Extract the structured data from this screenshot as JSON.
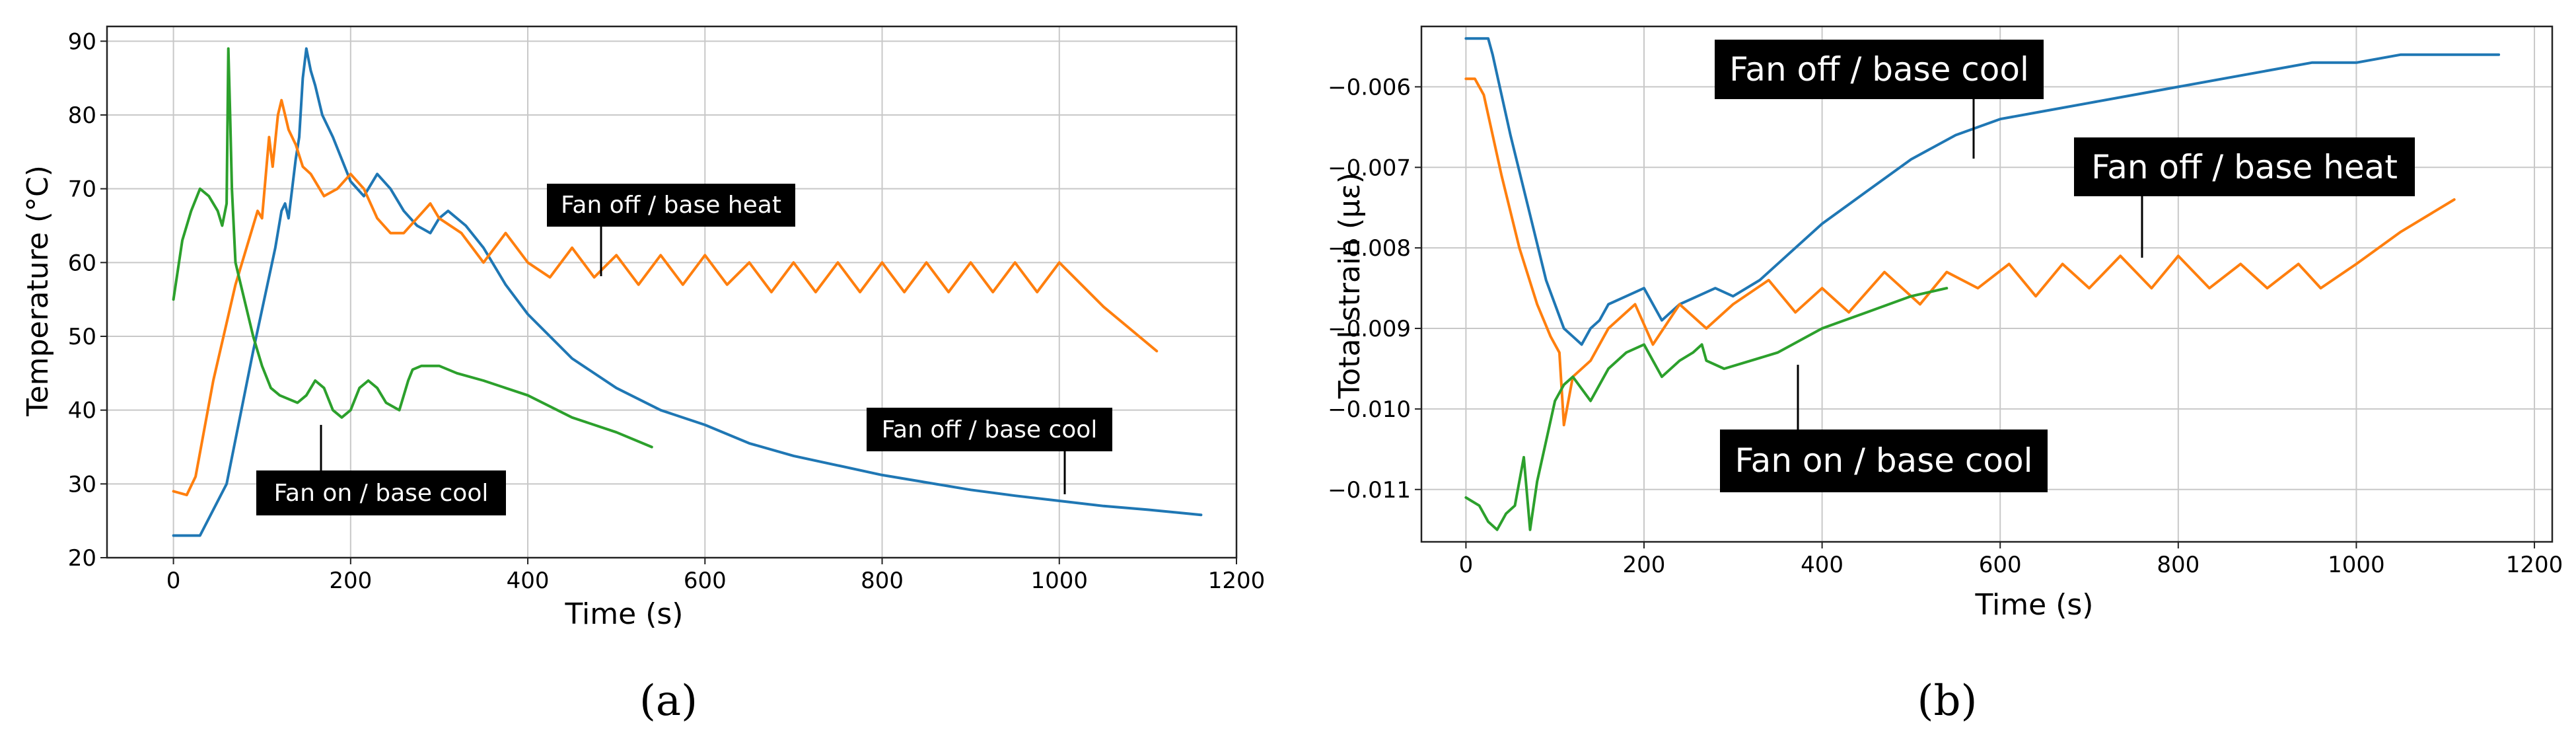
{
  "chart_data": [
    {
      "type": "line",
      "panel_label": "(a)",
      "xlabel": "Time (s)",
      "ylabel": "Temperature (°C)",
      "xlim": [
        -75,
        1200
      ],
      "ylim": [
        20,
        92
      ],
      "xticks": [
        0,
        200,
        400,
        600,
        800,
        1000,
        1200
      ],
      "yticks": [
        20,
        30,
        40,
        50,
        60,
        70,
        80,
        90
      ],
      "grid": true,
      "series": [
        {
          "color": "#1f77b4",
          "x": [
            0,
            20,
            30,
            60,
            90,
            115,
            122,
            126,
            130,
            134,
            138,
            142,
            146,
            150,
            155,
            160,
            168,
            180,
            200,
            215,
            230,
            245,
            260,
            275,
            290,
            300,
            310,
            330,
            350,
            375,
            400,
            450,
            500,
            550,
            600,
            650,
            700,
            750,
            800,
            850,
            900,
            950,
            1000,
            1050,
            1100,
            1160
          ],
          "y": [
            23,
            23,
            23,
            30,
            48,
            62,
            67,
            68,
            66,
            70,
            74,
            77,
            85,
            89,
            86,
            84,
            80,
            77,
            71,
            69,
            72,
            70,
            67,
            65,
            64,
            66,
            67,
            65,
            62,
            57,
            53,
            47,
            43,
            40,
            38,
            35.5,
            33.8,
            32.5,
            31.2,
            30.2,
            29.2,
            28.4,
            27.7,
            27,
            26.5,
            25.8
          ]
        },
        {
          "color": "#ff7f0e",
          "x": [
            0,
            15,
            25,
            45,
            70,
            95,
            100,
            108,
            112,
            118,
            122,
            126,
            130,
            138,
            146,
            155,
            170,
            185,
            200,
            215,
            230,
            245,
            260,
            275,
            290,
            300,
            325,
            350,
            375,
            400,
            425,
            450,
            475,
            500,
            525,
            550,
            575,
            600,
            625,
            650,
            675,
            700,
            725,
            750,
            775,
            800,
            825,
            850,
            875,
            900,
            925,
            950,
            975,
            1000,
            1050,
            1110
          ],
          "y": [
            29,
            28.5,
            31,
            44,
            57,
            67,
            66,
            77,
            73,
            80,
            82,
            80,
            78,
            76,
            73,
            72,
            69,
            70,
            72,
            70,
            66,
            64,
            64,
            66,
            68,
            66,
            64,
            60,
            64,
            60,
            58,
            62,
            58,
            61,
            57,
            61,
            57,
            61,
            57,
            60,
            56,
            60,
            56,
            60,
            56,
            60,
            56,
            60,
            56,
            60,
            56,
            60,
            56,
            60,
            54,
            48
          ]
        },
        {
          "color": "#2ca02c",
          "x": [
            0,
            10,
            20,
            30,
            40,
            50,
            55,
            60,
            62,
            64,
            66,
            70,
            80,
            90,
            100,
            110,
            120,
            140,
            150,
            160,
            170,
            180,
            190,
            200,
            210,
            220,
            230,
            240,
            255,
            265,
            270,
            280,
            300,
            320,
            350,
            400,
            450,
            500,
            540
          ],
          "y": [
            55,
            63,
            67,
            70,
            69,
            67,
            65,
            68,
            89,
            80,
            70,
            60,
            55,
            50,
            46,
            43,
            42,
            41,
            42,
            44,
            43,
            40,
            39,
            40,
            43,
            44,
            43,
            41,
            40,
            44,
            45.5,
            46,
            46,
            45,
            44,
            42,
            39,
            37,
            35
          ]
        }
      ]
    },
    {
      "type": "line",
      "panel_label": "(b)",
      "xlabel": "Time (s)",
      "ylabel": "Total strain (με)",
      "xlim": [
        -50,
        1220
      ],
      "ylim": [
        -0.01165,
        -0.00525
      ],
      "xticks": [
        0,
        200,
        400,
        600,
        800,
        1000,
        1200
      ],
      "yticks": [
        -0.011,
        -0.01,
        -0.009,
        -0.008,
        -0.007,
        -0.006
      ],
      "ytick_labels": [
        "−0.011",
        "−0.010",
        "−0.009",
        "−0.008",
        "−0.007",
        "−0.006"
      ],
      "grid": true,
      "series": [
        {
          "color": "#1f77b4",
          "x": [
            0,
            25,
            30,
            50,
            70,
            90,
            110,
            120,
            130,
            140,
            150,
            160,
            180,
            200,
            220,
            240,
            260,
            280,
            300,
            330,
            360,
            400,
            450,
            500,
            550,
            600,
            650,
            700,
            750,
            800,
            850,
            900,
            950,
            1000,
            1050,
            1100,
            1160
          ],
          "y": [
            -0.0054,
            -0.0054,
            -0.0056,
            -0.0066,
            -0.0075,
            -0.0084,
            -0.009,
            -0.0091,
            -0.0092,
            -0.009,
            -0.0089,
            -0.0087,
            -0.0086,
            -0.0085,
            -0.0089,
            -0.0087,
            -0.0086,
            -0.0085,
            -0.0086,
            -0.0084,
            -0.0081,
            -0.0077,
            -0.0073,
            -0.0069,
            -0.0066,
            -0.0064,
            -0.0063,
            -0.0062,
            -0.0061,
            -0.006,
            -0.0059,
            -0.0058,
            -0.0057,
            -0.0057,
            -0.0056,
            -0.0056,
            -0.0056
          ]
        },
        {
          "color": "#ff7f0e",
          "x": [
            0,
            10,
            20,
            40,
            60,
            80,
            95,
            105,
            110,
            120,
            140,
            160,
            190,
            210,
            240,
            270,
            300,
            340,
            370,
            400,
            430,
            470,
            510,
            540,
            575,
            610,
            640,
            670,
            700,
            735,
            770,
            800,
            835,
            870,
            900,
            935,
            960,
            1000,
            1050,
            1110
          ],
          "y": [
            -0.0059,
            -0.0059,
            -0.0061,
            -0.0071,
            -0.008,
            -0.0087,
            -0.0091,
            -0.0093,
            -0.0102,
            -0.0096,
            -0.0094,
            -0.009,
            -0.0087,
            -0.0092,
            -0.0087,
            -0.009,
            -0.0087,
            -0.0084,
            -0.0088,
            -0.0085,
            -0.0088,
            -0.0083,
            -0.0087,
            -0.0083,
            -0.0085,
            -0.0082,
            -0.0086,
            -0.0082,
            -0.0085,
            -0.0081,
            -0.0085,
            -0.0081,
            -0.0085,
            -0.0082,
            -0.0085,
            -0.0082,
            -0.0085,
            -0.0082,
            -0.0078,
            -0.0074
          ]
        },
        {
          "color": "#2ca02c",
          "x": [
            0,
            15,
            25,
            35,
            45,
            55,
            65,
            72,
            80,
            90,
            100,
            110,
            120,
            140,
            160,
            180,
            200,
            220,
            240,
            255,
            265,
            270,
            290,
            320,
            350,
            400,
            450,
            500,
            540
          ],
          "y": [
            -0.0111,
            -0.0112,
            -0.0114,
            -0.0115,
            -0.0113,
            -0.0112,
            -0.0106,
            -0.0115,
            -0.0109,
            -0.0104,
            -0.0099,
            -0.0097,
            -0.0096,
            -0.0099,
            -0.0095,
            -0.0093,
            -0.0092,
            -0.0096,
            -0.0094,
            -0.0093,
            -0.0092,
            -0.0094,
            -0.0095,
            -0.0094,
            -0.0093,
            -0.009,
            -0.0088,
            -0.0086,
            -0.0085
          ]
        }
      ]
    }
  ],
  "annotations": [
    {
      "text": "Fan off / base heat"
    },
    {
      "text": "Fan off / base cool"
    },
    {
      "text": "Fan on / base cool"
    },
    {
      "text": "Fan off / base cool"
    },
    {
      "text": "Fan off / base heat"
    },
    {
      "text": "Fan on / base cool"
    }
  ]
}
